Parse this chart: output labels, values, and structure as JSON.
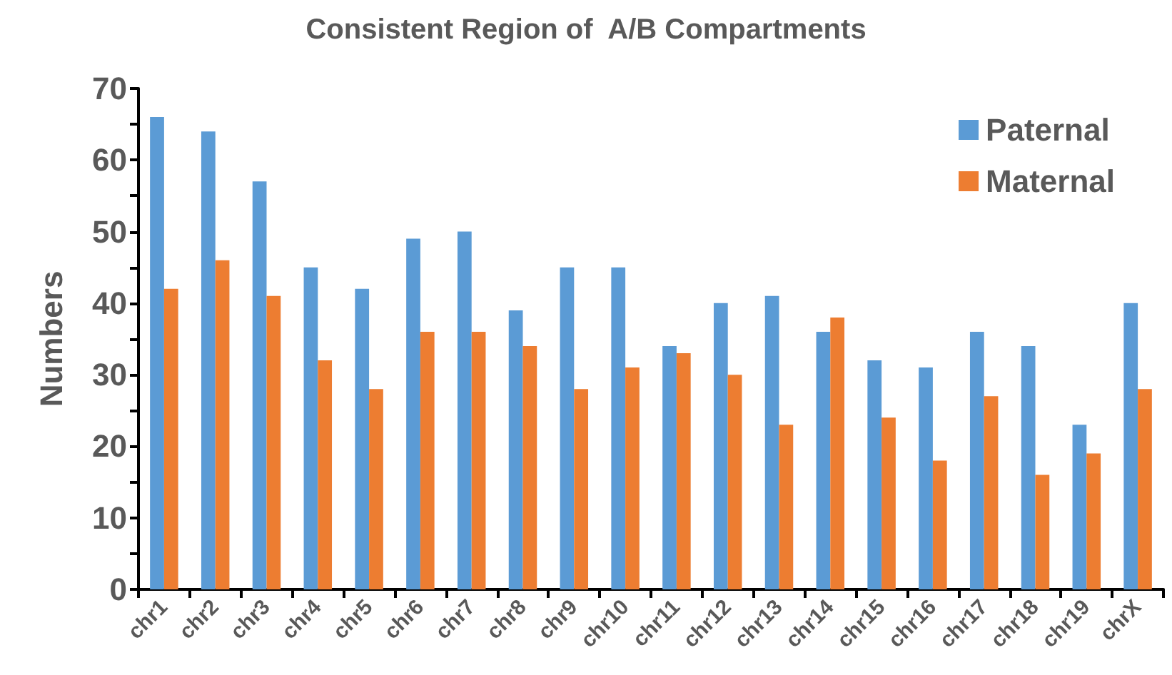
{
  "chart_data": {
    "type": "bar",
    "title": "Consistent Region of  A/B Compartments",
    "ylabel": "Numbers",
    "categories": [
      "chr1",
      "chr2",
      "chr3",
      "chr4",
      "chr5",
      "chr6",
      "chr7",
      "chr8",
      "chr9",
      "chr10",
      "chr11",
      "chr12",
      "chr13",
      "chr14",
      "chr15",
      "chr16",
      "chr17",
      "chr18",
      "chr19",
      "chrX"
    ],
    "series": [
      {
        "name": "Paternal",
        "color": "#5b9bd5",
        "values": [
          66,
          64,
          57,
          45,
          42,
          49,
          50,
          39,
          45,
          45,
          34,
          40,
          41,
          36,
          32,
          31,
          36,
          34,
          23,
          40
        ]
      },
      {
        "name": "Maternal",
        "color": "#ed7d31",
        "values": [
          42,
          46,
          41,
          32,
          28,
          36,
          36,
          34,
          28,
          31,
          33,
          30,
          23,
          38,
          24,
          18,
          27,
          16,
          19,
          28
        ]
      }
    ],
    "ylim": [
      0,
      70
    ],
    "yticks": [
      0,
      {
        "value": 5,
        "label": null
      },
      10,
      {
        "value": 15,
        "label": null
      },
      20,
      {
        "value": 25,
        "label": null
      },
      30,
      {
        "value": 35,
        "label": null
      },
      40,
      {
        "value": 45,
        "label": null
      },
      50,
      {
        "value": 55,
        "label": null
      },
      60,
      {
        "value": 65,
        "label": null
      },
      70
    ],
    "grid": false,
    "legend": "top right"
  }
}
